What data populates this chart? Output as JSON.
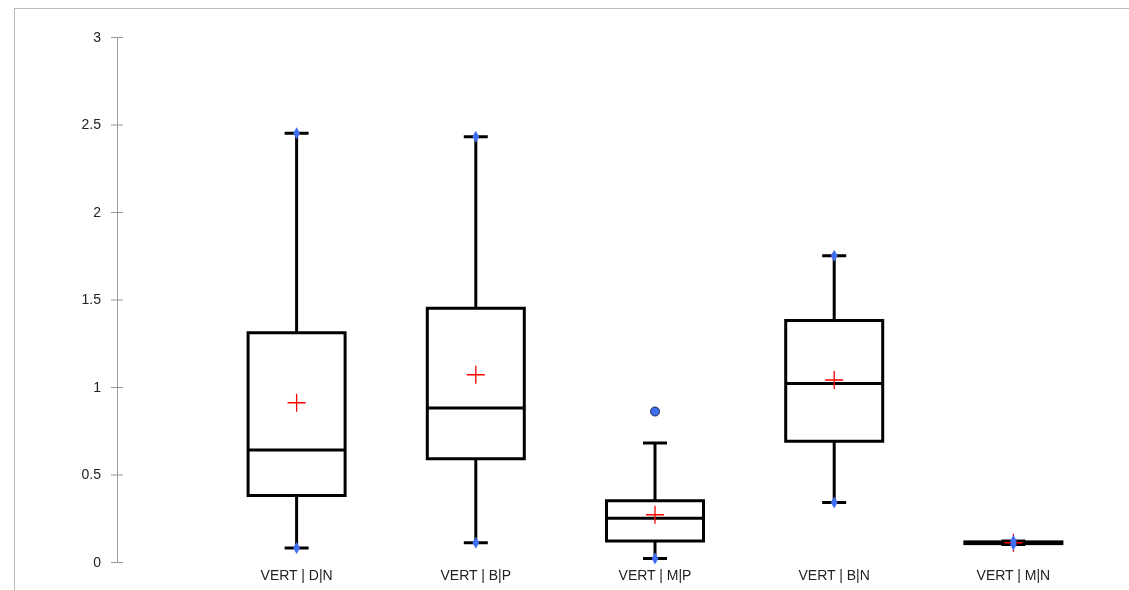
{
  "chart_data": {
    "type": "box",
    "categories": [
      "VERT | D|N",
      "VERT | B|P",
      "VERT | M|P",
      "VERT | B|N",
      "VERT | M|N"
    ],
    "boxes": [
      {
        "low": 0.08,
        "q1": 0.38,
        "median": 0.64,
        "q3": 1.31,
        "high": 2.45,
        "mean": 0.91
      },
      {
        "low": 0.11,
        "q1": 0.59,
        "median": 0.88,
        "q3": 1.45,
        "high": 2.43,
        "mean": 1.07
      },
      {
        "low": 0.02,
        "q1": 0.12,
        "median": 0.25,
        "q3": 0.35,
        "high": 0.68,
        "mean": 0.27,
        "outliers": [
          0.86
        ]
      },
      {
        "low": 0.34,
        "q1": 0.69,
        "median": 1.02,
        "q3": 1.38,
        "high": 1.75,
        "mean": 1.04
      },
      {
        "low": 0.1,
        "q1": 0.105,
        "median": 0.11,
        "q3": 0.115,
        "high": 0.12,
        "mean": 0.11
      }
    ],
    "series": [
      {
        "type": "scatter",
        "marker": "diamond",
        "color": "#3f6ff0",
        "x": [
          "VERT | D|N",
          "VERT | D|N",
          "VERT | B|P",
          "VERT | B|P",
          "VERT | M|P",
          "VERT | B|N",
          "VERT | B|N",
          "VERT | M|N",
          "VERT | M|N"
        ],
        "values": [
          0.08,
          2.45,
          0.11,
          2.43,
          0.02,
          0.34,
          1.75,
          0.1,
          0.12
        ]
      }
    ],
    "ylim": [
      0,
      3
    ],
    "yticks": [
      0,
      0.5,
      1,
      1.5,
      2,
      2.5,
      3
    ],
    "grid": false
  }
}
